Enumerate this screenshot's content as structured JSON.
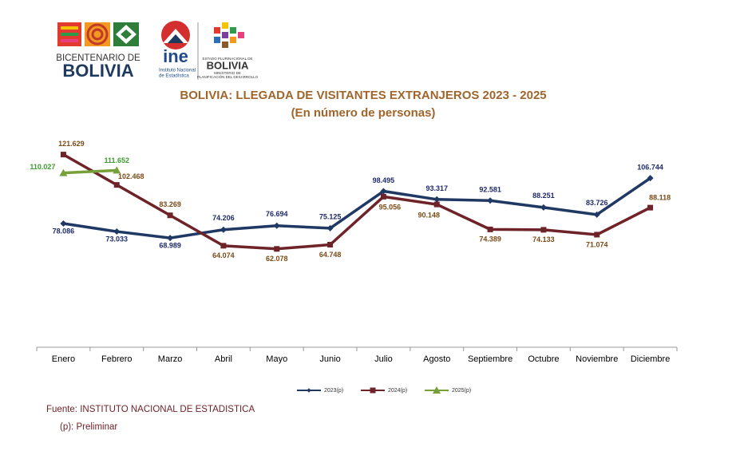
{
  "logos": {
    "bicentenario_top": "BICENTENARIO DE",
    "bicentenario_bottom": "BOLIVIA",
    "ine": "ine",
    "ine_sub1": "Instituto Nacional",
    "ine_sub2": "de Estadística",
    "estado": "ESTADO PLURINACIONAL DE",
    "estado_bolivia": "BOLIVIA",
    "ministerio1": "MINISTERIO DE",
    "ministerio2": "PLANIFICACIÓN DEL DESARROLLO"
  },
  "chart_data": {
    "type": "line",
    "title": "BOLIVIA: LLEGADA DE VISITANTES EXTRANJEROS 2023 - 2025",
    "subtitle": "(En número de personas)",
    "categories": [
      "Enero",
      "Febrero",
      "Marzo",
      "Abril",
      "Mayo",
      "Junio",
      "Julio",
      "Agosto",
      "Septiembre",
      "Octubre",
      "Noviembre",
      "Diciembre"
    ],
    "ylim": [
      0,
      130000
    ],
    "legend": "bottom",
    "series": [
      {
        "name": "2023(p)",
        "color": "#1f3864",
        "label_color": "#1f2a6b",
        "marker": "diamond",
        "values": [
          78086,
          73033,
          68989,
          74206,
          76694,
          75125,
          98495,
          93317,
          92581,
          88251,
          83726,
          106744
        ],
        "value_labels": [
          "78.086",
          "73.033",
          "68.989",
          "74.206",
          "76.694",
          "75.125",
          "98.495",
          "93.317",
          "92.581",
          "88.251",
          "83.726",
          "106.744"
        ]
      },
      {
        "name": "2024(p)",
        "color": "#6e2328",
        "label_color": "#7a4a17",
        "marker": "square",
        "values": [
          121629,
          102468,
          83269,
          64074,
          62078,
          64748,
          95056,
          90148,
          74389,
          74133,
          71074,
          88118
        ],
        "value_labels": [
          "121.629",
          "102.468",
          "83.269",
          "64.074",
          "62.078",
          "64.748",
          "95.056",
          "90.148",
          "74.389",
          "74.133",
          "71.074",
          "88.118"
        ]
      },
      {
        "name": "2025(p)",
        "color": "#77a03a",
        "label_color": "#3f9a30",
        "marker": "triangle",
        "values": [
          110027,
          111652,
          null,
          null,
          null,
          null,
          null,
          null,
          null,
          null,
          null,
          null
        ],
        "value_labels": [
          "110.027",
          "111.652",
          null,
          null,
          null,
          null,
          null,
          null,
          null,
          null,
          null,
          null
        ]
      }
    ]
  },
  "footer": {
    "source": "Fuente: INSTITUTO NACIONAL DE ESTADISTICA",
    "note": "(p): Preliminar"
  }
}
